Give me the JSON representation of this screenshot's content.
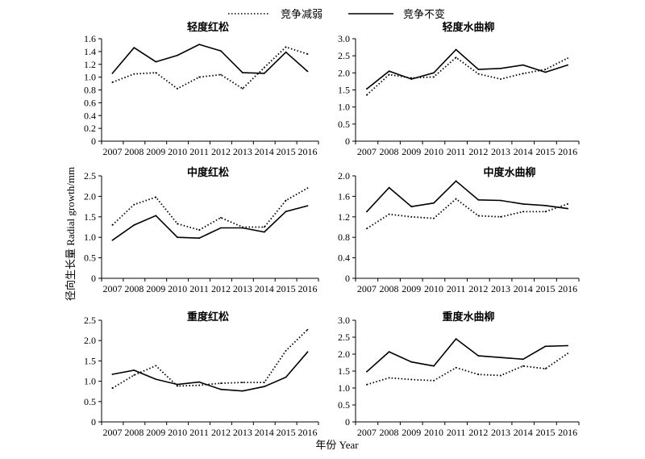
{
  "legend": [
    {
      "label": "竞争减弱",
      "style": "dotted"
    },
    {
      "label": "竞争不变",
      "style": "solid"
    }
  ],
  "ylabel": "径向生长量  Radial growth/mm",
  "xlabel": "年份 Year",
  "chart_data": [
    {
      "type": "line",
      "title": "轻度红松",
      "x": [
        2007,
        2008,
        2009,
        2010,
        2011,
        2012,
        2013,
        2014,
        2015,
        2016
      ],
      "ylim": [
        0,
        1.6
      ],
      "yticks": [
        "0",
        "0.2",
        "0.4",
        "0.6",
        "0.8",
        "1.0",
        "1.2",
        "1.4",
        "1.6"
      ],
      "series": [
        {
          "name": "竞争减弱",
          "values": [
            0.92,
            1.05,
            1.07,
            0.82,
            1.0,
            1.04,
            0.82,
            1.15,
            1.47,
            1.36
          ]
        },
        {
          "name": "竞争不变",
          "values": [
            1.06,
            1.46,
            1.24,
            1.34,
            1.51,
            1.41,
            1.07,
            1.06,
            1.39,
            1.09
          ]
        }
      ]
    },
    {
      "type": "line",
      "title": "轻度水曲柳",
      "x": [
        2007,
        2008,
        2009,
        2010,
        2011,
        2012,
        2013,
        2014,
        2015,
        2016
      ],
      "ylim": [
        0,
        3.0
      ],
      "yticks": [
        "0",
        "0.5",
        "1.0",
        "1.5",
        "2.0",
        "2.5",
        "3.0"
      ],
      "series": [
        {
          "name": "竞争减弱",
          "values": [
            1.35,
            1.95,
            1.85,
            1.88,
            2.45,
            1.97,
            1.82,
            1.98,
            2.1,
            2.43
          ]
        },
        {
          "name": "竞争不变",
          "values": [
            1.53,
            2.05,
            1.82,
            2.0,
            2.68,
            2.1,
            2.13,
            2.23,
            2.02,
            2.23
          ]
        }
      ]
    },
    {
      "type": "line",
      "title": "中度红松",
      "x": [
        2007,
        2008,
        2009,
        2010,
        2011,
        2012,
        2013,
        2014,
        2015,
        2016
      ],
      "ylim": [
        0,
        2.5
      ],
      "yticks": [
        "0",
        "0.5",
        "1.0",
        "1.5",
        "2.0",
        "2.5"
      ],
      "series": [
        {
          "name": "竞争减弱",
          "values": [
            1.3,
            1.8,
            1.98,
            1.33,
            1.18,
            1.48,
            1.25,
            1.25,
            1.9,
            2.2
          ]
        },
        {
          "name": "竞争不变",
          "values": [
            0.93,
            1.3,
            1.53,
            1.0,
            0.98,
            1.23,
            1.23,
            1.13,
            1.63,
            1.77
          ]
        }
      ]
    },
    {
      "type": "line",
      "title": "中度水曲柳",
      "x": [
        2007,
        2008,
        2009,
        2010,
        2011,
        2012,
        2013,
        2014,
        2015,
        2016
      ],
      "ylim": [
        0,
        2.0
      ],
      "yticks": [
        "0",
        "0.4",
        "0.8",
        "1.2",
        "1.6",
        "2.0"
      ],
      "series": [
        {
          "name": "竞争减弱",
          "values": [
            0.97,
            1.25,
            1.2,
            1.17,
            1.55,
            1.22,
            1.2,
            1.3,
            1.3,
            1.45
          ]
        },
        {
          "name": "竞争不变",
          "values": [
            1.3,
            1.77,
            1.4,
            1.47,
            1.9,
            1.53,
            1.52,
            1.45,
            1.42,
            1.36
          ]
        }
      ]
    },
    {
      "type": "line",
      "title": "重度红松",
      "x": [
        2007,
        2008,
        2009,
        2010,
        2011,
        2012,
        2013,
        2014,
        2015,
        2016
      ],
      "ylim": [
        0,
        2.5
      ],
      "yticks": [
        "0",
        "0.5",
        "1.0",
        "1.5",
        "2.0",
        "2.5"
      ],
      "series": [
        {
          "name": "竞争减弱",
          "values": [
            0.83,
            1.15,
            1.38,
            0.88,
            0.9,
            0.95,
            0.97,
            0.97,
            1.75,
            2.27
          ]
        },
        {
          "name": "竞争不变",
          "values": [
            1.17,
            1.27,
            1.05,
            0.92,
            0.98,
            0.8,
            0.76,
            0.87,
            1.1,
            1.72
          ]
        }
      ]
    },
    {
      "type": "line",
      "title": "重度水曲柳",
      "x": [
        2007,
        2008,
        2009,
        2010,
        2011,
        2012,
        2013,
        2014,
        2015,
        2016
      ],
      "ylim": [
        0,
        3.0
      ],
      "yticks": [
        "0",
        "0.5",
        "1.0",
        "1.5",
        "2.0",
        "2.5",
        "3.0"
      ],
      "series": [
        {
          "name": "竞争减弱",
          "values": [
            1.1,
            1.3,
            1.25,
            1.22,
            1.6,
            1.4,
            1.37,
            1.65,
            1.57,
            2.02
          ]
        },
        {
          "name": "竞争不变",
          "values": [
            1.48,
            2.07,
            1.77,
            1.65,
            2.45,
            1.95,
            1.9,
            1.85,
            2.23,
            2.25
          ]
        }
      ]
    }
  ]
}
